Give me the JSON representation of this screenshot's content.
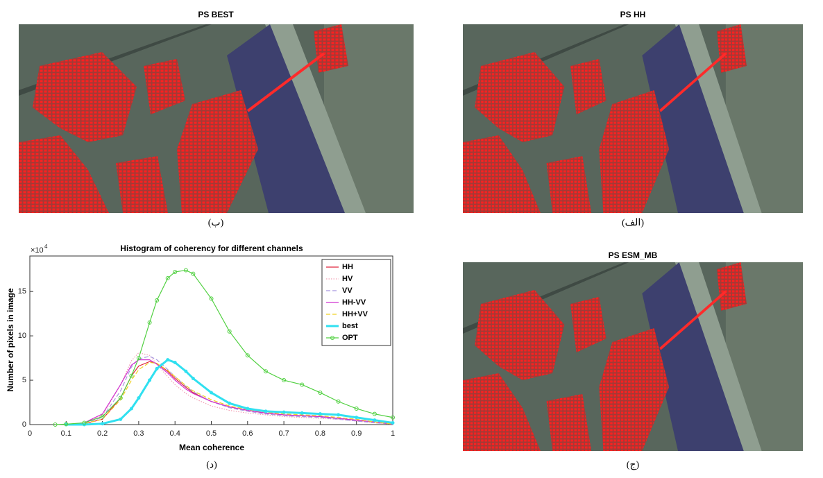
{
  "panels": [
    {
      "title": "PS BEST",
      "caption": "(ب)"
    },
    {
      "title": "PS HH",
      "caption": "(الف)"
    },
    {
      "title": "PS ESM_MB",
      "caption": "(ج)"
    }
  ],
  "chart_data": {
    "type": "line",
    "title": "Histogram of coherency for different channels",
    "xlabel": "Mean coherence",
    "ylabel": "Number of pixels in image",
    "y_multiplier": "×10",
    "y_multiplier_exp": "4",
    "caption": "(د)",
    "x": [
      0.07,
      0.1,
      0.15,
      0.2,
      0.25,
      0.28,
      0.3,
      0.33,
      0.35,
      0.38,
      0.4,
      0.43,
      0.45,
      0.5,
      0.55,
      0.6,
      0.65,
      0.7,
      0.75,
      0.8,
      0.85,
      0.9,
      0.95,
      1.0
    ],
    "series": [
      {
        "name": "HH",
        "color": "#e0243c",
        "dash": "solid",
        "marker": "none",
        "values": [
          null,
          0,
          0.1,
          0.6,
          3.0,
          5.5,
          6.6,
          7.1,
          6.9,
          6.0,
          5.2,
          4.2,
          3.6,
          2.6,
          2.0,
          1.6,
          1.3,
          1.1,
          1.0,
          0.9,
          0.7,
          0.5,
          0.3,
          0.05
        ]
      },
      {
        "name": "HV",
        "color": "#f2a0b4",
        "dash": "dotted",
        "marker": "none",
        "values": [
          null,
          0,
          0.2,
          1.0,
          4.5,
          7.2,
          8.1,
          7.8,
          6.8,
          5.4,
          4.5,
          3.5,
          3.0,
          2.1,
          1.6,
          1.3,
          1.1,
          0.9,
          0.8,
          0.7,
          0.6,
          0.4,
          0.2,
          0.05
        ]
      },
      {
        "name": "VV",
        "color": "#a898e0",
        "dash": "dashed",
        "marker": "none",
        "values": [
          null,
          0,
          0.15,
          0.8,
          3.8,
          6.5,
          7.4,
          7.7,
          7.3,
          6.2,
          5.4,
          4.3,
          3.7,
          2.6,
          1.9,
          1.5,
          1.2,
          1.0,
          0.9,
          0.8,
          0.6,
          0.4,
          0.2,
          0.05
        ]
      },
      {
        "name": "HH-VV",
        "color": "#d030d0",
        "dash": "solid",
        "marker": "none",
        "values": [
          null,
          0,
          0.2,
          1.2,
          4.5,
          6.7,
          7.3,
          7.3,
          6.8,
          5.8,
          5.0,
          4.0,
          3.5,
          2.6,
          2.0,
          1.6,
          1.3,
          1.1,
          1.0,
          0.9,
          0.7,
          0.5,
          0.3,
          0.05
        ]
      },
      {
        "name": "HH+VV",
        "color": "#f0d020",
        "dash": "dashed",
        "marker": "none",
        "values": [
          null,
          0,
          0.1,
          0.6,
          2.8,
          5.0,
          6.2,
          7.0,
          6.9,
          6.1,
          5.4,
          4.4,
          3.8,
          2.8,
          2.1,
          1.7,
          1.4,
          1.2,
          1.1,
          1.0,
          0.8,
          0.6,
          0.3,
          0.05
        ]
      },
      {
        "name": "best",
        "color": "#30e0f0",
        "dash": "solid",
        "marker": "dot",
        "values": [
          null,
          0,
          0,
          0.1,
          0.6,
          1.8,
          3.0,
          5.0,
          6.3,
          7.3,
          7.0,
          6.0,
          5.2,
          3.6,
          2.4,
          1.8,
          1.5,
          1.4,
          1.3,
          1.2,
          1.1,
          0.8,
          0.5,
          0.2
        ]
      },
      {
        "name": "OPT",
        "color": "#50d040",
        "dash": "solid",
        "marker": "circle",
        "values": [
          0,
          0.05,
          0.2,
          0.9,
          3.0,
          5.5,
          7.5,
          11.5,
          14.0,
          16.5,
          17.2,
          17.4,
          17.0,
          14.2,
          10.5,
          7.8,
          6.0,
          5.0,
          4.5,
          3.6,
          2.6,
          1.8,
          1.2,
          0.8
        ]
      }
    ],
    "xlim": [
      0,
      1
    ],
    "xticks": [
      0,
      0.1,
      0.2,
      0.3,
      0.4,
      0.5,
      0.6,
      0.7,
      0.8,
      0.9,
      1
    ],
    "ylim": [
      0,
      19
    ],
    "yticks": [
      0,
      5,
      10,
      15
    ],
    "grid": false,
    "legend": "upper right"
  }
}
